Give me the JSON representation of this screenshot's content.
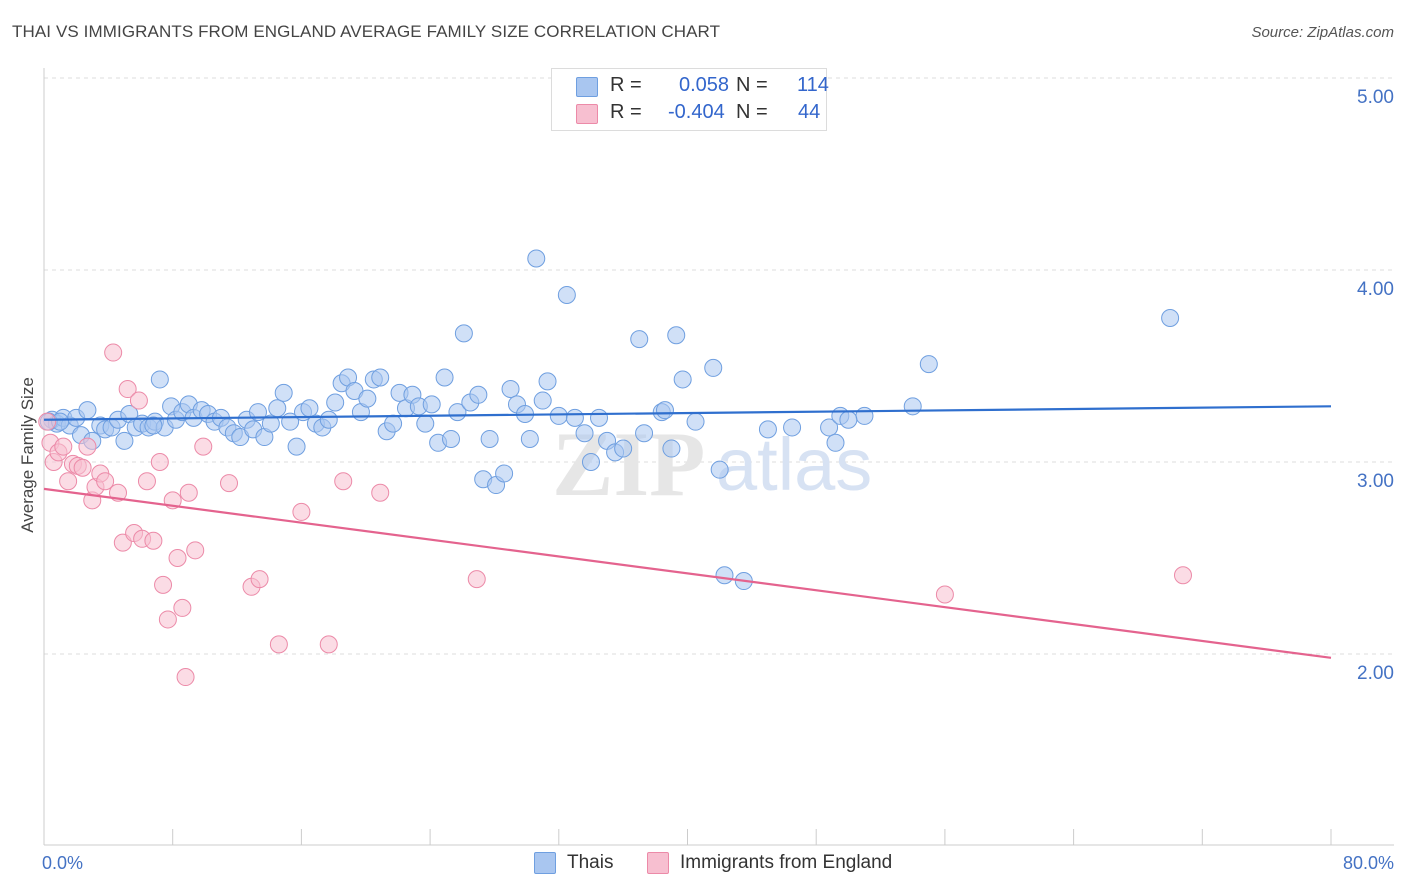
{
  "title": "THAI VS IMMIGRANTS FROM ENGLAND AVERAGE FAMILY SIZE CORRELATION CHART",
  "source": "Source: ZipAtlas.com",
  "watermark": {
    "zip": "ZIP",
    "atlas": "atlas"
  },
  "legend": {
    "rows": [
      {
        "r_label": "R =",
        "r_value": "0.058",
        "n_label": "N =",
        "n_value": "114",
        "color": "#a9c6f0",
        "border": "#6f9fe0"
      },
      {
        "r_label": "R =",
        "r_value": "-0.404",
        "n_label": "N =",
        "n_value": "44",
        "color": "#f7bfd0",
        "border": "#ec8aa8"
      }
    ]
  },
  "bottom_legend": [
    "Thais",
    "Immigrants from England"
  ],
  "chart_data": {
    "type": "scatter",
    "title": "THAI VS IMMIGRANTS FROM ENGLAND AVERAGE FAMILY SIZE CORRELATION CHART",
    "xlabel": "",
    "ylabel": "Average Family Size",
    "xlim": [
      0,
      80
    ],
    "ylim": [
      1.0,
      5.1
    ],
    "x_tick_labels": [
      "0.0%",
      "80.0%"
    ],
    "y_ticks": [
      2.0,
      3.0,
      4.0,
      5.0
    ],
    "y_tick_labels": [
      "2.00",
      "3.00",
      "4.00",
      "5.00"
    ],
    "grid": true,
    "legend_position": "top-center",
    "series": [
      {
        "name": "Thais",
        "color": "#6f9fe0",
        "fill": "#a9c6f0",
        "trend": {
          "x": [
            0,
            80
          ],
          "y": [
            3.22,
            3.29
          ]
        },
        "points": [
          [
            0.5,
            3.22
          ],
          [
            0.8,
            3.2
          ],
          [
            1.2,
            3.23
          ],
          [
            1.6,
            3.19
          ],
          [
            2.0,
            3.23
          ],
          [
            2.3,
            3.14
          ],
          [
            2.7,
            3.27
          ],
          [
            3.0,
            3.11
          ],
          [
            3.5,
            3.19
          ],
          [
            3.8,
            3.17
          ],
          [
            4.2,
            3.18
          ],
          [
            4.6,
            3.22
          ],
          [
            5.0,
            3.11
          ],
          [
            5.3,
            3.25
          ],
          [
            5.7,
            3.18
          ],
          [
            6.1,
            3.2
          ],
          [
            6.5,
            3.18
          ],
          [
            6.9,
            3.21
          ],
          [
            7.2,
            3.43
          ],
          [
            7.5,
            3.18
          ],
          [
            7.9,
            3.29
          ],
          [
            8.2,
            3.22
          ],
          [
            8.6,
            3.26
          ],
          [
            9.0,
            3.3
          ],
          [
            9.3,
            3.23
          ],
          [
            9.8,
            3.27
          ],
          [
            10.2,
            3.25
          ],
          [
            10.6,
            3.21
          ],
          [
            11.0,
            3.23
          ],
          [
            11.4,
            3.18
          ],
          [
            11.8,
            3.15
          ],
          [
            12.2,
            3.13
          ],
          [
            12.6,
            3.22
          ],
          [
            13.0,
            3.17
          ],
          [
            13.3,
            3.26
          ],
          [
            13.7,
            3.13
          ],
          [
            14.1,
            3.2
          ],
          [
            14.5,
            3.28
          ],
          [
            14.9,
            3.36
          ],
          [
            15.3,
            3.21
          ],
          [
            15.7,
            3.08
          ],
          [
            16.1,
            3.26
          ],
          [
            16.5,
            3.28
          ],
          [
            16.9,
            3.2
          ],
          [
            17.3,
            3.18
          ],
          [
            17.7,
            3.22
          ],
          [
            18.1,
            3.31
          ],
          [
            18.5,
            3.41
          ],
          [
            18.9,
            3.44
          ],
          [
            19.3,
            3.37
          ],
          [
            19.7,
            3.26
          ],
          [
            20.1,
            3.33
          ],
          [
            20.5,
            3.43
          ],
          [
            20.9,
            3.44
          ],
          [
            21.3,
            3.16
          ],
          [
            21.7,
            3.2
          ],
          [
            22.1,
            3.36
          ],
          [
            22.5,
            3.28
          ],
          [
            22.9,
            3.35
          ],
          [
            23.3,
            3.29
          ],
          [
            23.7,
            3.2
          ],
          [
            24.1,
            3.3
          ],
          [
            24.5,
            3.1
          ],
          [
            24.9,
            3.44
          ],
          [
            25.3,
            3.12
          ],
          [
            25.7,
            3.26
          ],
          [
            26.1,
            3.67
          ],
          [
            26.5,
            3.31
          ],
          [
            27.0,
            3.35
          ],
          [
            27.3,
            2.91
          ],
          [
            27.7,
            3.12
          ],
          [
            28.1,
            2.88
          ],
          [
            28.6,
            2.94
          ],
          [
            29.0,
            3.38
          ],
          [
            29.4,
            3.3
          ],
          [
            29.9,
            3.25
          ],
          [
            30.2,
            3.12
          ],
          [
            30.6,
            4.06
          ],
          [
            31.0,
            3.32
          ],
          [
            31.3,
            3.42
          ],
          [
            32.0,
            3.24
          ],
          [
            32.5,
            3.87
          ],
          [
            33.0,
            3.23
          ],
          [
            33.6,
            3.15
          ],
          [
            34.0,
            3.0
          ],
          [
            34.5,
            3.23
          ],
          [
            35.0,
            3.11
          ],
          [
            35.5,
            3.05
          ],
          [
            36.0,
            3.07
          ],
          [
            37.0,
            3.64
          ],
          [
            37.3,
            3.15
          ],
          [
            38.4,
            3.26
          ],
          [
            38.6,
            3.27
          ],
          [
            39.0,
            3.07
          ],
          [
            39.3,
            3.66
          ],
          [
            39.7,
            3.43
          ],
          [
            40.5,
            3.21
          ],
          [
            41.6,
            3.49
          ],
          [
            42.0,
            2.96
          ],
          [
            42.3,
            2.41
          ],
          [
            43.5,
            2.38
          ],
          [
            45.0,
            3.17
          ],
          [
            46.5,
            3.18
          ],
          [
            48.8,
            3.18
          ],
          [
            49.2,
            3.1
          ],
          [
            49.5,
            3.24
          ],
          [
            51.0,
            3.24
          ],
          [
            54.0,
            3.29
          ],
          [
            55.0,
            3.51
          ],
          [
            70.0,
            3.75
          ],
          [
            50.0,
            3.22
          ],
          [
            0.3,
            3.21
          ],
          [
            1.0,
            3.21
          ],
          [
            6.8,
            3.19
          ]
        ]
      },
      {
        "name": "Immigrants from England",
        "color": "#ec8aa8",
        "fill": "#f7bfd0",
        "trend": {
          "x": [
            0,
            80
          ],
          "y": [
            2.86,
            1.98
          ]
        },
        "points": [
          [
            0.4,
            3.1
          ],
          [
            0.6,
            3.0
          ],
          [
            0.9,
            3.05
          ],
          [
            1.2,
            3.08
          ],
          [
            1.5,
            2.9
          ],
          [
            1.8,
            2.99
          ],
          [
            2.1,
            2.98
          ],
          [
            2.4,
            2.97
          ],
          [
            2.7,
            3.08
          ],
          [
            3.0,
            2.8
          ],
          [
            3.2,
            2.87
          ],
          [
            3.5,
            2.94
          ],
          [
            3.8,
            2.9
          ],
          [
            4.3,
            3.57
          ],
          [
            4.6,
            2.84
          ],
          [
            4.9,
            2.58
          ],
          [
            5.2,
            3.38
          ],
          [
            5.6,
            2.63
          ],
          [
            5.9,
            3.32
          ],
          [
            6.1,
            2.6
          ],
          [
            6.4,
            2.9
          ],
          [
            6.8,
            2.59
          ],
          [
            7.2,
            3.0
          ],
          [
            7.4,
            2.36
          ],
          [
            7.7,
            2.18
          ],
          [
            8.0,
            2.8
          ],
          [
            8.3,
            2.5
          ],
          [
            8.6,
            2.24
          ],
          [
            8.8,
            1.88
          ],
          [
            9.0,
            2.84
          ],
          [
            9.4,
            2.54
          ],
          [
            9.9,
            3.08
          ],
          [
            11.5,
            2.89
          ],
          [
            12.9,
            2.35
          ],
          [
            13.4,
            2.39
          ],
          [
            14.6,
            2.05
          ],
          [
            16.0,
            2.74
          ],
          [
            17.7,
            2.05
          ],
          [
            18.6,
            2.9
          ],
          [
            20.9,
            2.84
          ],
          [
            26.9,
            2.39
          ],
          [
            56.0,
            2.31
          ],
          [
            70.8,
            2.41
          ],
          [
            0.2,
            3.21
          ]
        ]
      }
    ]
  }
}
